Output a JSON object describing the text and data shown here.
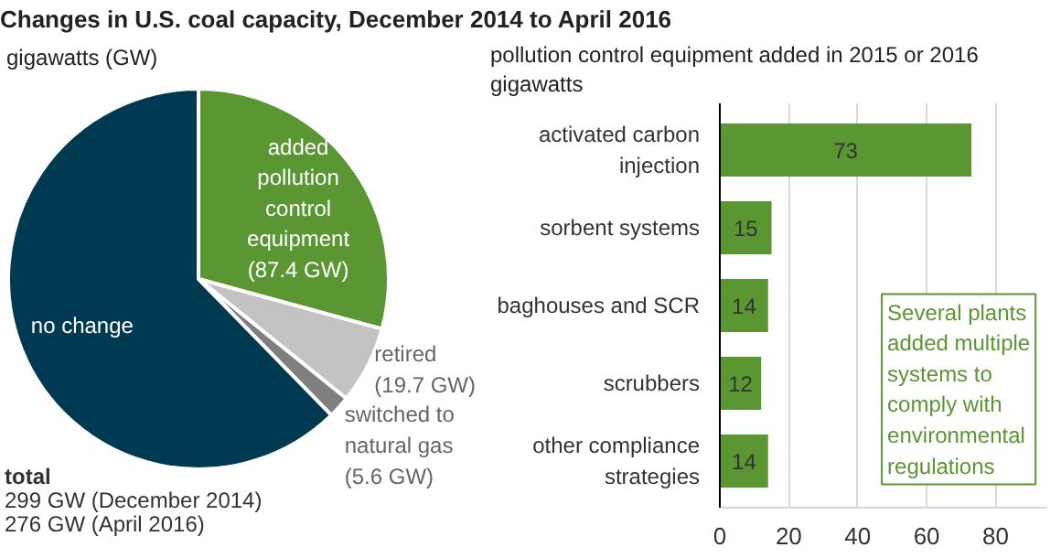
{
  "chart_data": [
    {
      "type": "pie",
      "title": "Changes in U.S. coal capacity, December 2014 to April 2016",
      "subtitle": "gigawatts (GW)",
      "categories": [
        "no change",
        "added pollution control equipment",
        "retired",
        "switched to natural gas"
      ],
      "values": [
        186.3,
        87.4,
        19.7,
        5.6
      ],
      "value_labels": [
        null,
        "(87.4 GW)",
        "(19.7 GW)",
        "(5.6 GW)"
      ],
      "colors": [
        "#003a52",
        "#5a9632",
        "#c3c3c3",
        "#7f7f7f"
      ],
      "annotations": [
        "total",
        "299 GW (December 2014)",
        "276 GW (April 2016)"
      ]
    },
    {
      "type": "bar",
      "orientation": "horizontal",
      "title": "pollution control equipment added in 2015 or 2016",
      "subtitle": "gigawatts",
      "categories": [
        "activated carbon injection",
        "sorbent systems",
        "baghouses and SCR",
        "scrubbers",
        "other compliance strategies"
      ],
      "values": [
        73,
        15,
        14,
        12,
        14
      ],
      "color": "#5a9632",
      "data_labels": true,
      "xlim": [
        0,
        95
      ],
      "xticks": [
        0,
        20,
        40,
        60,
        80
      ],
      "grid": "x",
      "annotations": [
        "Several plants added multiple systems to comply with environmental regulations"
      ]
    }
  ]
}
